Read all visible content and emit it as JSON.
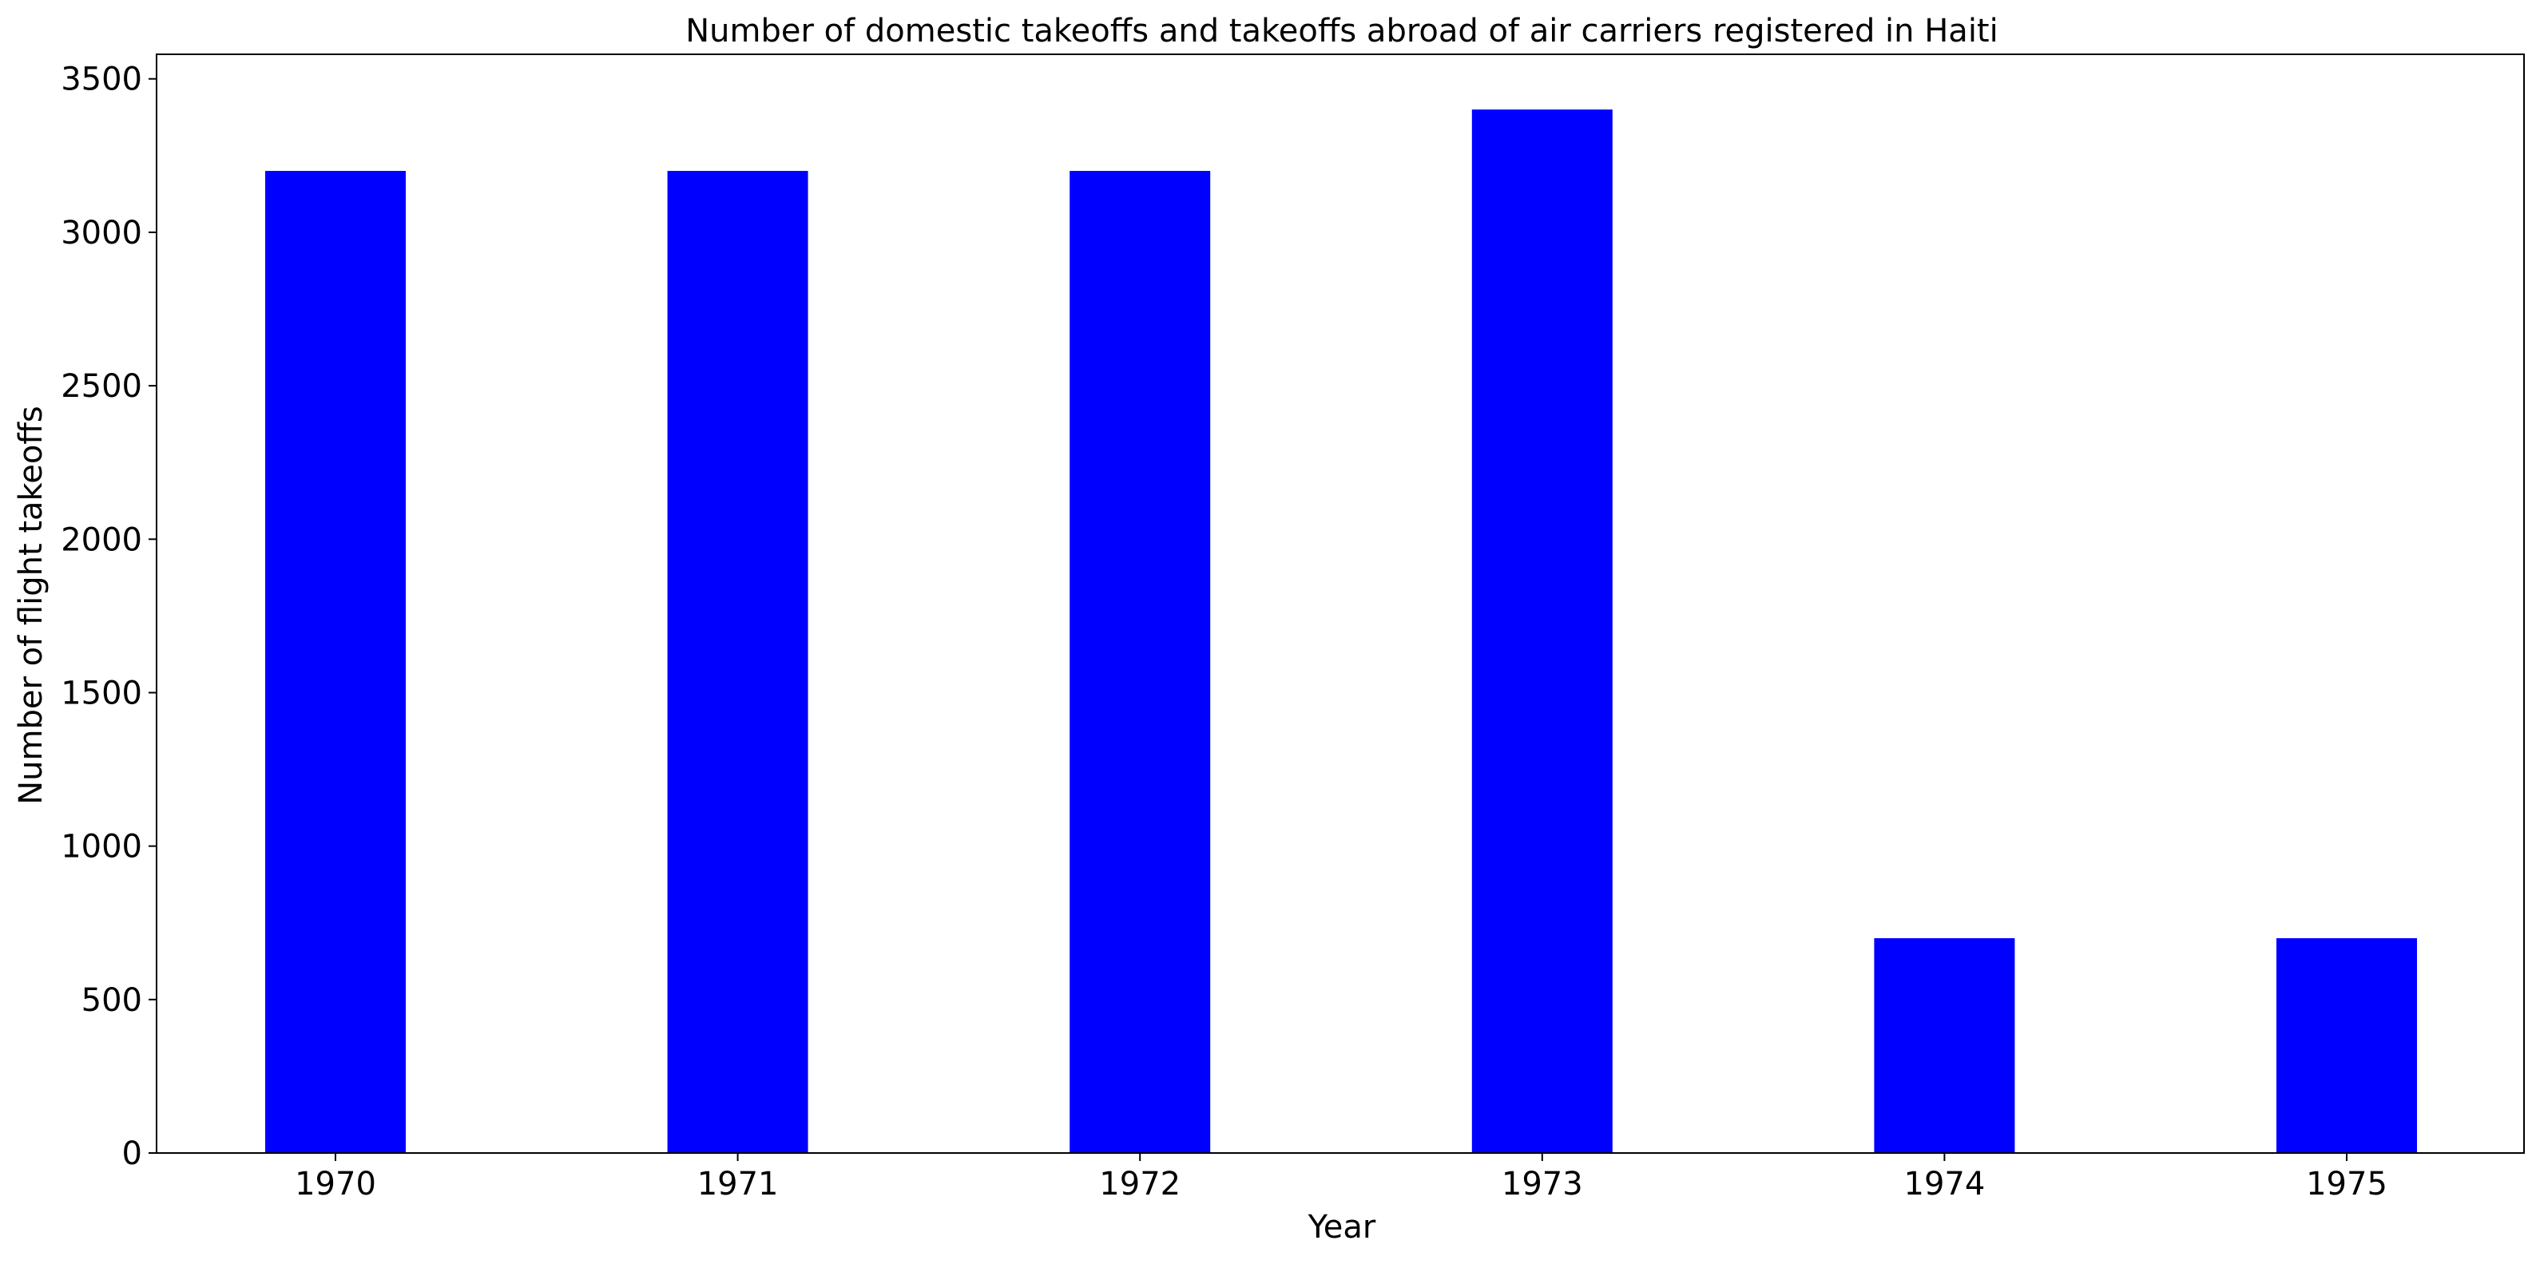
{
  "chart_data": {
    "type": "bar",
    "title": "Number of domestic takeoffs and takeoffs abroad of air carriers registered in Haiti",
    "xlabel": "Year",
    "ylabel": "Number of flight takeoffs",
    "categories": [
      "1970",
      "1971",
      "1972",
      "1973",
      "1974",
      "1975"
    ],
    "values": [
      3200,
      3200,
      3200,
      3400,
      700,
      700
    ],
    "ylim": [
      0,
      3580
    ],
    "yticks": [
      0,
      500,
      1000,
      1500,
      2000,
      2500,
      3000,
      3500
    ],
    "bar_color": "#0000ff",
    "grid": false,
    "legend": "none"
  }
}
